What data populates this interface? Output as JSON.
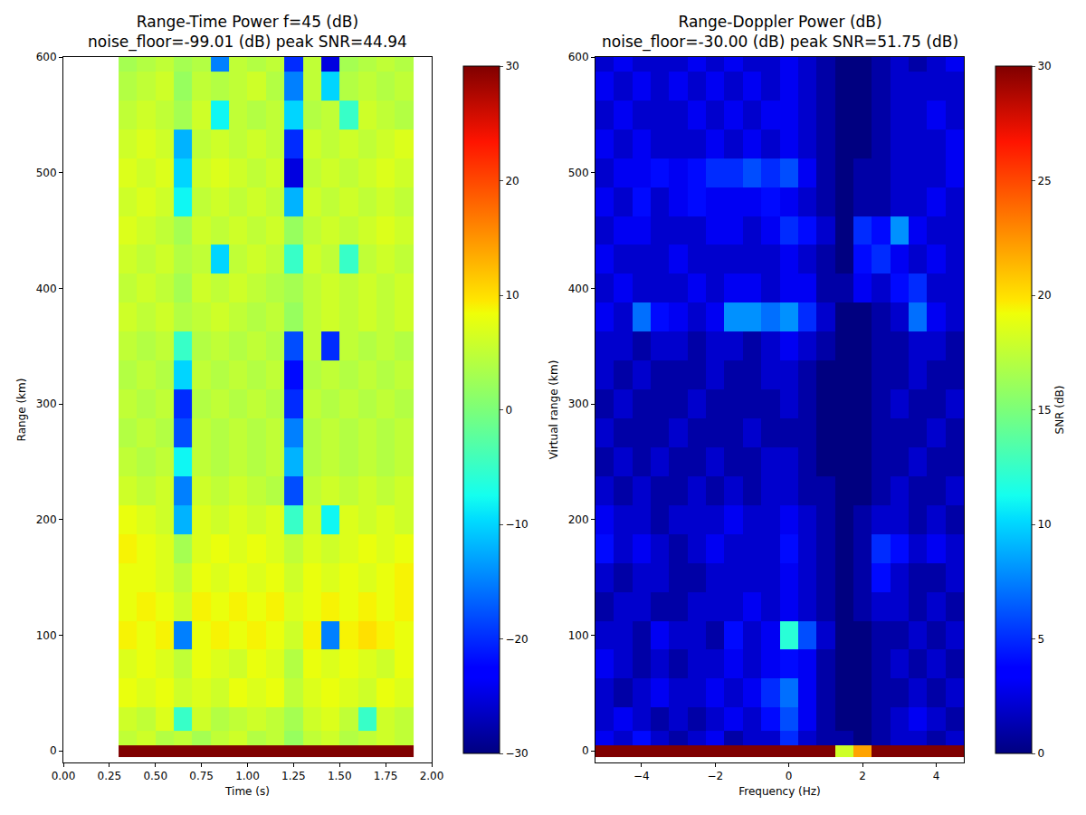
{
  "chart_data": [
    {
      "type": "heatmap",
      "title": "Range-Time Power f=45 (dB)",
      "subtitle": "noise_floor=-99.01 (dB) peak SNR=44.94",
      "x_label": "Time (s)",
      "y_label": "Range (km)",
      "color": "jet",
      "grid": false,
      "xlim": [
        0,
        2
      ],
      "xticks": [
        {
          "value": 0,
          "label": "0.00"
        },
        {
          "value": 0.25,
          "label": "0.25"
        },
        {
          "value": 0.5,
          "label": "0.50"
        },
        {
          "value": 0.75,
          "label": "0.75"
        },
        {
          "value": 1,
          "label": "1.00"
        },
        {
          "value": 1.25,
          "label": "1.25"
        },
        {
          "value": 1.5,
          "label": "1.50"
        },
        {
          "value": 1.75,
          "label": "1.75"
        },
        {
          "value": 2,
          "label": "2.00"
        }
      ],
      "ylim": [
        -10,
        600
      ],
      "yticks": [
        0,
        100,
        200,
        300,
        400,
        500,
        600
      ],
      "colorbar": {
        "range": [
          -30,
          30
        ],
        "ticks": [
          {
            "value": -30,
            "label": "−30"
          },
          {
            "value": -20,
            "label": "−20"
          },
          {
            "value": -10,
            "label": "−10"
          },
          0,
          10,
          20,
          30
        ]
      },
      "x": [
        0.35,
        0.45,
        0.55,
        0.65,
        0.75,
        0.85,
        0.95,
        1.05,
        1.15,
        1.25,
        1.35,
        1.45,
        1.55,
        1.65,
        1.75,
        1.85
      ],
      "y": [
        0,
        10,
        25,
        50,
        75,
        100,
        125,
        150,
        175,
        200,
        225,
        250,
        275,
        300,
        325,
        350,
        375,
        400,
        425,
        450,
        475,
        500,
        525,
        550,
        575,
        600
      ],
      "z": [
        [
          30,
          30,
          30,
          30,
          30,
          30,
          30,
          30,
          30,
          30,
          30,
          30,
          30,
          30,
          30,
          30
        ],
        [
          5,
          6,
          4,
          5,
          3,
          5,
          6,
          4,
          5,
          2,
          5,
          6,
          4,
          5,
          6,
          5
        ],
        [
          6,
          5,
          7,
          -5,
          6,
          4,
          5,
          6,
          5,
          3,
          6,
          7,
          5,
          -5,
          6,
          5
        ],
        [
          8,
          7,
          8,
          6,
          7,
          6,
          8,
          7,
          8,
          5,
          7,
          8,
          7,
          6,
          8,
          7
        ],
        [
          7,
          8,
          7,
          5,
          8,
          7,
          6,
          8,
          7,
          4,
          8,
          7,
          8,
          7,
          6,
          8
        ],
        [
          9,
          8,
          9,
          -15,
          8,
          9,
          8,
          9,
          8,
          6,
          9,
          -15,
          9,
          10,
          9,
          8
        ],
        [
          8,
          9,
          8,
          6,
          9,
          8,
          9,
          8,
          9,
          7,
          8,
          9,
          8,
          9,
          8,
          9
        ],
        [
          8,
          8,
          7,
          5,
          8,
          7,
          8,
          7,
          8,
          6,
          8,
          7,
          8,
          7,
          8,
          9
        ],
        [
          9,
          8,
          7,
          3,
          7,
          8,
          7,
          8,
          7,
          5,
          7,
          6,
          7,
          8,
          7,
          8
        ],
        [
          8,
          7,
          6,
          -12,
          7,
          6,
          7,
          6,
          7,
          -5,
          6,
          -8,
          7,
          6,
          7,
          6
        ],
        [
          6,
          5,
          6,
          -15,
          6,
          5,
          6,
          5,
          4,
          -18,
          5,
          6,
          5,
          6,
          5,
          6
        ],
        [
          5,
          4,
          5,
          -8,
          5,
          4,
          5,
          4,
          5,
          -12,
          4,
          5,
          4,
          5,
          4,
          5
        ],
        [
          4,
          5,
          4,
          -18,
          5,
          4,
          5,
          4,
          5,
          -15,
          4,
          5,
          4,
          5,
          4,
          5
        ],
        [
          5,
          4,
          5,
          -20,
          4,
          5,
          4,
          5,
          4,
          -20,
          5,
          4,
          5,
          4,
          5,
          4
        ],
        [
          4,
          5,
          4,
          -10,
          5,
          4,
          5,
          4,
          5,
          -22,
          4,
          5,
          4,
          5,
          4,
          5
        ],
        [
          5,
          4,
          5,
          -5,
          4,
          5,
          4,
          5,
          4,
          -18,
          5,
          -20,
          5,
          4,
          5,
          4
        ],
        [
          6,
          5,
          6,
          4,
          5,
          6,
          5,
          4,
          5,
          2,
          5,
          6,
          5,
          6,
          5,
          6
        ],
        [
          5,
          6,
          5,
          3,
          6,
          5,
          6,
          5,
          4,
          3,
          5,
          6,
          5,
          6,
          5,
          6
        ],
        [
          6,
          5,
          6,
          4,
          5,
          -10,
          5,
          6,
          5,
          -5,
          6,
          5,
          -5,
          5,
          6,
          5
        ],
        [
          7,
          6,
          5,
          3,
          6,
          5,
          6,
          5,
          6,
          2,
          5,
          6,
          5,
          6,
          7,
          6
        ],
        [
          6,
          7,
          6,
          -8,
          5,
          6,
          5,
          6,
          5,
          -12,
          6,
          5,
          6,
          5,
          6,
          5
        ],
        [
          7,
          6,
          7,
          -10,
          6,
          7,
          6,
          5,
          6,
          -25,
          5,
          6,
          5,
          6,
          7,
          6
        ],
        [
          6,
          7,
          6,
          -12,
          5,
          6,
          5,
          6,
          5,
          -20,
          6,
          5,
          6,
          5,
          6,
          7
        ],
        [
          5,
          6,
          5,
          3,
          6,
          -8,
          5,
          4,
          5,
          -10,
          4,
          5,
          -5,
          6,
          5,
          4
        ],
        [
          4,
          5,
          6,
          2,
          5,
          4,
          5,
          6,
          4,
          -15,
          5,
          -10,
          4,
          5,
          4,
          5
        ],
        [
          3,
          4,
          5,
          3,
          4,
          -15,
          5,
          4,
          5,
          -20,
          5,
          -25,
          3,
          4,
          5,
          4
        ]
      ]
    },
    {
      "type": "heatmap",
      "title": "Range-Doppler Power (dB)",
      "subtitle": "noise_floor=-30.00 (dB) peak SNR=51.75 (dB)",
      "x_label": "Frequency (Hz)",
      "y_label": "Virtual range (km)",
      "color": "jet",
      "grid": false,
      "xlim": [
        -5.25,
        4.75
      ],
      "xticks": [
        {
          "value": -4,
          "label": "−4"
        },
        {
          "value": -2,
          "label": "−2"
        },
        0,
        2,
        4
      ],
      "ylim": [
        -10,
        600
      ],
      "yticks": [
        0,
        100,
        200,
        300,
        400,
        500,
        600
      ],
      "colorbar": {
        "range": [
          0,
          30
        ],
        "ticks": [
          0,
          5,
          10,
          15,
          20,
          25,
          30
        ],
        "title": "SNR (dB)"
      },
      "x": [
        -5,
        -4.5,
        -4,
        -3.5,
        -3,
        -2.5,
        -2,
        -1.5,
        -1,
        -0.5,
        0,
        0.5,
        1,
        1.5,
        2,
        2.5,
        3,
        3.5,
        4,
        4.5
      ],
      "y": [
        0,
        10,
        25,
        50,
        75,
        100,
        125,
        150,
        175,
        200,
        225,
        250,
        275,
        300,
        325,
        350,
        375,
        400,
        425,
        450,
        475,
        500,
        525,
        550,
        575,
        600
      ],
      "z": [
        [
          30,
          30,
          30,
          30,
          30,
          30,
          30,
          30,
          30,
          30,
          30,
          30,
          30,
          18,
          22,
          30,
          30,
          30,
          30,
          30
        ],
        [
          3,
          2,
          4,
          2,
          1,
          2,
          3,
          1,
          2,
          2,
          5,
          2,
          1,
          1,
          0,
          1,
          2,
          2,
          1,
          2
        ],
        [
          2,
          3,
          2,
          1,
          2,
          1,
          2,
          3,
          2,
          4,
          6,
          3,
          1,
          0,
          0,
          1,
          2,
          3,
          2,
          1
        ],
        [
          2,
          1,
          2,
          3,
          2,
          2,
          3,
          2,
          3,
          5,
          7,
          3,
          1,
          0,
          0,
          1,
          1,
          2,
          1,
          2
        ],
        [
          3,
          2,
          1,
          2,
          1,
          2,
          2,
          3,
          2,
          3,
          4,
          3,
          1,
          0,
          0,
          1,
          2,
          1,
          2,
          1
        ],
        [
          2,
          2,
          1,
          3,
          2,
          2,
          1,
          4,
          2,
          3,
          12,
          6,
          2,
          0,
          0,
          1,
          1,
          2,
          1,
          2
        ],
        [
          1,
          2,
          2,
          1,
          1,
          2,
          2,
          2,
          3,
          2,
          3,
          2,
          1,
          0,
          1,
          2,
          2,
          1,
          2,
          1
        ],
        [
          2,
          1,
          2,
          2,
          1,
          1,
          2,
          2,
          2,
          2,
          3,
          2,
          1,
          0,
          1,
          4,
          2,
          1,
          1,
          2
        ],
        [
          4,
          2,
          3,
          2,
          1,
          2,
          3,
          2,
          2,
          2,
          4,
          2,
          1,
          0,
          1,
          5,
          4,
          2,
          3,
          2
        ],
        [
          3,
          2,
          2,
          1,
          2,
          2,
          2,
          3,
          2,
          2,
          3,
          2,
          1,
          0,
          1,
          2,
          2,
          1,
          2,
          1
        ],
        [
          2,
          1,
          2,
          1,
          1,
          2,
          1,
          2,
          1,
          2,
          2,
          1,
          1,
          0,
          0,
          1,
          2,
          1,
          1,
          2
        ],
        [
          1,
          2,
          1,
          2,
          1,
          1,
          2,
          1,
          1,
          2,
          2,
          1,
          0,
          0,
          0,
          1,
          1,
          2,
          1,
          1
        ],
        [
          2,
          1,
          1,
          1,
          2,
          1,
          1,
          1,
          2,
          1,
          1,
          1,
          0,
          0,
          0,
          1,
          1,
          1,
          2,
          1
        ],
        [
          1,
          2,
          1,
          1,
          1,
          2,
          1,
          1,
          1,
          1,
          2,
          1,
          0,
          0,
          0,
          1,
          2,
          1,
          1,
          2
        ],
        [
          2,
          1,
          2,
          1,
          1,
          1,
          2,
          1,
          1,
          2,
          2,
          1,
          0,
          0,
          0,
          1,
          1,
          2,
          1,
          1
        ],
        [
          2,
          2,
          1,
          2,
          2,
          1,
          2,
          2,
          1,
          2,
          3,
          2,
          1,
          0,
          0,
          1,
          1,
          2,
          2,
          1
        ],
        [
          3,
          2,
          7,
          4,
          3,
          2,
          3,
          8,
          8,
          7,
          8,
          5,
          2,
          0,
          0,
          1,
          2,
          7,
          3,
          2
        ],
        [
          2,
          3,
          2,
          2,
          2,
          3,
          2,
          3,
          3,
          2,
          3,
          3,
          1,
          1,
          3,
          2,
          4,
          5,
          2,
          2
        ],
        [
          3,
          2,
          2,
          2,
          3,
          2,
          2,
          2,
          2,
          2,
          3,
          2,
          1,
          0,
          4,
          5,
          3,
          2,
          3,
          2
        ],
        [
          2,
          3,
          3,
          2,
          2,
          2,
          3,
          3,
          2,
          3,
          5,
          4,
          2,
          0,
          5,
          4,
          8,
          3,
          2,
          2
        ],
        [
          3,
          2,
          4,
          2,
          3,
          4,
          3,
          3,
          3,
          4,
          3,
          2,
          1,
          0,
          1,
          1,
          2,
          2,
          3,
          2
        ],
        [
          2,
          3,
          3,
          4,
          3,
          4,
          5,
          5,
          6,
          5,
          6,
          3,
          1,
          0,
          1,
          1,
          2,
          2,
          2,
          3
        ],
        [
          3,
          2,
          3,
          2,
          2,
          2,
          3,
          2,
          3,
          2,
          3,
          2,
          1,
          0,
          0,
          1,
          2,
          2,
          2,
          3
        ],
        [
          2,
          3,
          2,
          2,
          2,
          3,
          2,
          3,
          2,
          3,
          3,
          2,
          1,
          0,
          0,
          1,
          2,
          2,
          3,
          2
        ],
        [
          3,
          2,
          3,
          2,
          3,
          2,
          3,
          2,
          3,
          2,
          3,
          2,
          1,
          0,
          0,
          1,
          2,
          2,
          2,
          2
        ],
        [
          2,
          3,
          2,
          2,
          2,
          3,
          2,
          3,
          2,
          2,
          3,
          2,
          1,
          0,
          0,
          1,
          2,
          1,
          2,
          3
        ]
      ]
    }
  ]
}
